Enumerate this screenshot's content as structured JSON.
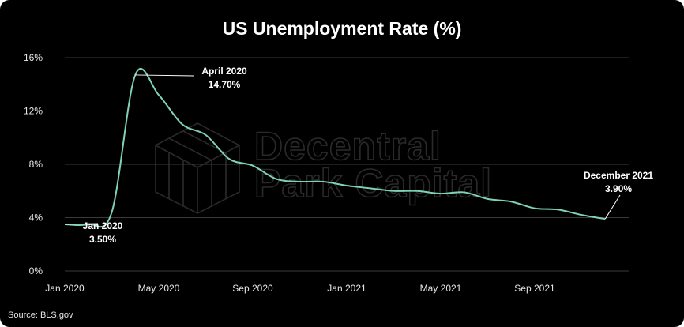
{
  "chart_data": {
    "type": "line",
    "title": "US Unemployment Rate (%)",
    "xlabel": "",
    "ylabel": "",
    "ylim": [
      0,
      16
    ],
    "yticks": [
      "0%",
      "4%",
      "8%",
      "12%",
      "16%"
    ],
    "xticks": [
      "Jan 2020",
      "May 2020",
      "Sep 2020",
      "Jan 2021",
      "May 2021",
      "Sep 2021"
    ],
    "grid": true,
    "line_color": "#7fd3b4",
    "series": [
      {
        "x": [
          "2020-01",
          "2020-02",
          "2020-03",
          "2020-04",
          "2020-05",
          "2020-06",
          "2020-07",
          "2020-08",
          "2020-09",
          "2020-10",
          "2020-11",
          "2020-12",
          "2021-01",
          "2021-02",
          "2021-03",
          "2021-04",
          "2021-05",
          "2021-06",
          "2021-07",
          "2021-08",
          "2021-09",
          "2021-10",
          "2021-11",
          "2021-12"
        ],
        "values": [
          3.5,
          3.5,
          4.4,
          14.7,
          13.2,
          11.0,
          10.2,
          8.4,
          7.9,
          6.9,
          6.7,
          6.7,
          6.4,
          6.2,
          6.0,
          6.0,
          5.8,
          5.9,
          5.4,
          5.2,
          4.7,
          4.6,
          4.2,
          3.9
        ]
      }
    ],
    "annotations": [
      {
        "date": "2020-01",
        "value": 3.5,
        "label": "Jan 2020",
        "value_label": "3.50%"
      },
      {
        "date": "2020-04",
        "value": 14.7,
        "label": "April 2020",
        "value_label": "14.70%"
      },
      {
        "date": "2021-12",
        "value": 3.9,
        "label": "December 2021",
        "value_label": "3.90%"
      }
    ]
  },
  "watermark": {
    "line1": "Decentral",
    "line2": "Park Capital"
  },
  "source": "Source: BLS.gov"
}
